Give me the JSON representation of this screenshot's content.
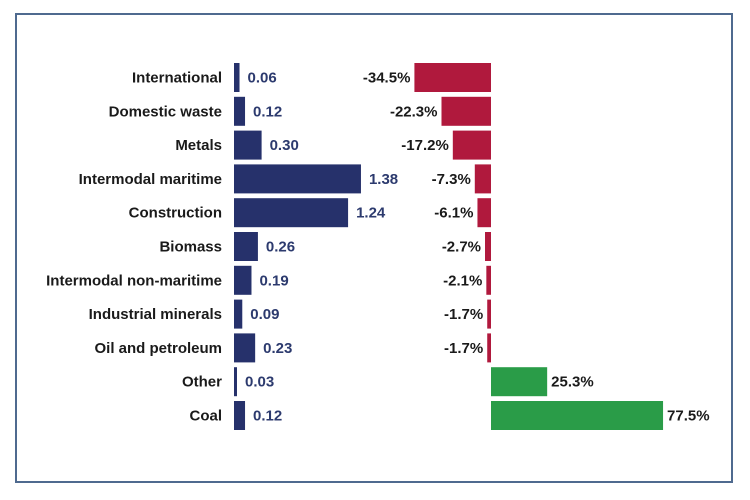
{
  "chart_data": {
    "type": "bar",
    "categories": [
      "International",
      "Domestic waste",
      "Metals",
      "Intermodal maritime",
      "Construction",
      "Biomass",
      "Intermodal non-maritime",
      "Industrial minerals",
      "Oil and petroleum",
      "Other",
      "Coal"
    ],
    "series": [
      {
        "values": [
          0.06,
          0.12,
          0.3,
          1.38,
          1.24,
          0.26,
          0.19,
          0.09,
          0.23,
          0.03,
          0.12
        ],
        "labels": [
          "0.06",
          "0.12",
          "0.30",
          "1.38",
          "1.24",
          "0.26",
          "0.19",
          "0.09",
          "0.23",
          "0.03",
          "0.12"
        ],
        "color": "#26316b"
      },
      {
        "values": [
          -34.5,
          -22.3,
          -17.2,
          -7.3,
          -6.1,
          -2.7,
          -2.1,
          -1.7,
          -1.7,
          25.3,
          77.5
        ],
        "labels": [
          "-34.5%",
          "-22.3%",
          "-17.2%",
          "-7.3%",
          "-6.1%",
          "-2.7%",
          "-2.1%",
          "-1.7%",
          "-1.7%",
          "25.3%",
          "77.5%"
        ],
        "color_negative": "#b0193d",
        "color_positive": "#2a9c48"
      }
    ],
    "grid": false,
    "legend": "none"
  }
}
